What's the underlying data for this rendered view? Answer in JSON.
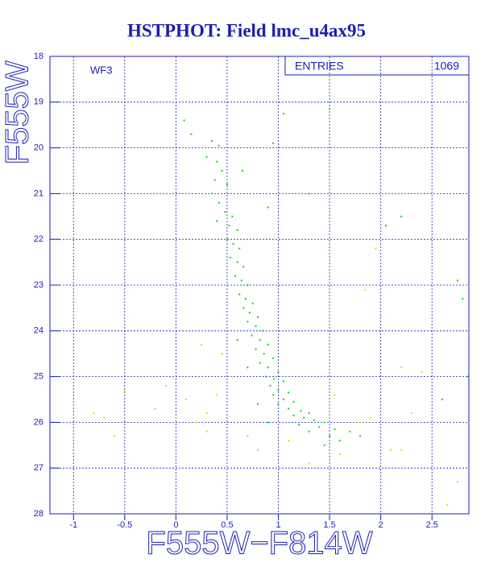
{
  "chart_data": {
    "type": "scatter",
    "title": "HSTPHOT: Field lmc_u4ax95",
    "x_label": "F555W−F814W",
    "y_label": "F555W",
    "annotation": "WF3",
    "stats": {
      "label": "ENTRIES",
      "value": "1069"
    },
    "xlim": [
      -1.23,
      2.86
    ],
    "ylim": [
      28,
      18
    ],
    "xticks": [
      -1,
      -0.5,
      0,
      0.5,
      1,
      1.5,
      2,
      2.5
    ],
    "yticks": [
      18,
      19,
      20,
      21,
      22,
      23,
      24,
      25,
      26,
      27,
      28
    ],
    "grid": true,
    "series": [
      {
        "color": "#00e000",
        "x": [
          0.08,
          0.15,
          0.35,
          0.42,
          0.3,
          0.4,
          0.45,
          0.38,
          0.5,
          0.35,
          0.42,
          0.48,
          0.55,
          0.4,
          0.52,
          0.6,
          0.5,
          0.56,
          0.62,
          0.53,
          0.6,
          0.66,
          0.58,
          0.64,
          0.7,
          0.62,
          0.68,
          0.75,
          0.66,
          0.72,
          0.8,
          0.7,
          0.78,
          0.85,
          0.74,
          0.82,
          0.9,
          0.78,
          0.86,
          0.95,
          0.82,
          0.9,
          1.0,
          0.88,
          0.96,
          1.05,
          0.92,
          1.0,
          1.1,
          0.95,
          1.05,
          1.15,
          1.0,
          1.1,
          1.22,
          1.3,
          1.15,
          1.25,
          1.35,
          1.45,
          1.2,
          1.4,
          1.55,
          1.7,
          1.3,
          1.5,
          1.8,
          1.6,
          1.45,
          0.9,
          0.8,
          0.7,
          0.6,
          1.3,
          1.05,
          0.95,
          0.65,
          0.9,
          2.05,
          2.2,
          2.75,
          2.8,
          2.85,
          2.6,
          1.5
        ],
        "y": [
          19.4,
          19.7,
          19.85,
          19.95,
          20.2,
          20.3,
          20.5,
          20.7,
          20.8,
          21.0,
          21.2,
          21.4,
          21.5,
          21.6,
          21.7,
          21.8,
          22.0,
          22.1,
          22.2,
          22.4,
          22.5,
          22.6,
          22.8,
          22.9,
          23.0,
          23.2,
          23.3,
          23.4,
          23.5,
          23.6,
          23.7,
          23.8,
          23.9,
          24.0,
          24.1,
          24.2,
          24.3,
          24.4,
          24.5,
          24.6,
          24.7,
          24.8,
          24.9,
          25.0,
          25.05,
          25.1,
          25.2,
          25.3,
          25.35,
          25.4,
          25.5,
          25.55,
          25.6,
          25.7,
          25.75,
          25.8,
          25.85,
          25.9,
          25.95,
          26.0,
          26.05,
          26.1,
          26.15,
          26.2,
          26.2,
          26.3,
          26.3,
          26.4,
          26.5,
          26.0,
          25.6,
          24.8,
          24.2,
          21.0,
          19.25,
          19.9,
          20.5,
          21.3,
          21.7,
          21.5,
          22.9,
          23.3,
          25.0,
          25.5,
          19.15
        ]
      },
      {
        "color": "#f0d000",
        "x": [
          -0.8,
          -0.7,
          -0.6,
          -0.5,
          -0.2,
          0.1,
          -0.1,
          0.2,
          0.3,
          0.4,
          0.25,
          0.3,
          0.8,
          0.7,
          1.1,
          1.3,
          1.55,
          1.8,
          1.9,
          2.0,
          2.1,
          2.2,
          2.0,
          2.3,
          2.4,
          2.65,
          2.75,
          1.95,
          1.85,
          0.45,
          2.2,
          0.0,
          0.55,
          1.6
        ],
        "y": [
          25.8,
          25.9,
          26.3,
          25.3,
          25.7,
          25.5,
          25.2,
          26.0,
          25.8,
          25.4,
          24.3,
          26.2,
          26.6,
          26.3,
          26.4,
          26.9,
          25.4,
          26.0,
          25.9,
          26.9,
          26.6,
          26.6,
          23.7,
          25.8,
          24.9,
          27.8,
          27.3,
          22.2,
          23.1,
          24.5,
          24.8,
          25.9,
          25.0,
          26.7
        ]
      }
    ]
  }
}
